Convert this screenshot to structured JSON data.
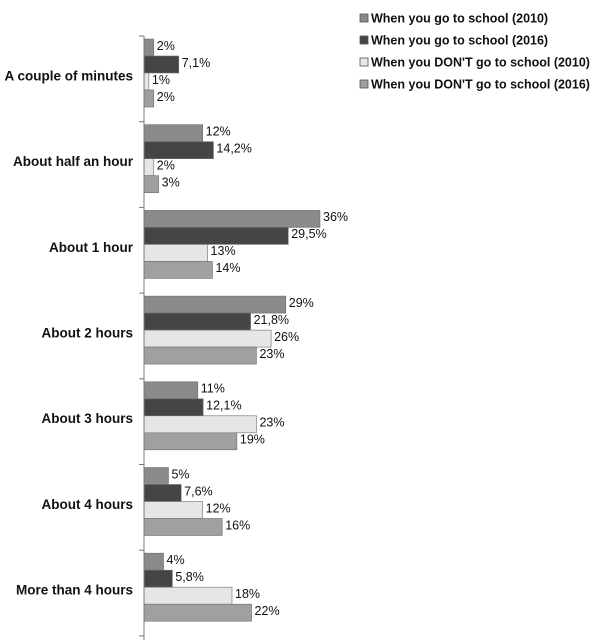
{
  "chart_data": {
    "type": "bar",
    "orientation": "horizontal",
    "categories": [
      "A couple of minutes",
      "About half an hour",
      "About 1 hour",
      "About 2 hours",
      "About 3 hours",
      "About 4 hours",
      "More than 4 hours"
    ],
    "series": [
      {
        "name": "When you go to school (2010)",
        "values": [
          2,
          12,
          36,
          29,
          11,
          5,
          4
        ],
        "labels": [
          "2%",
          "12%",
          "36%",
          "29%",
          "11%",
          "5%",
          "4%"
        ],
        "color": "#8a8a8a"
      },
      {
        "name": "When you go to school (2016)",
        "values": [
          7.1,
          14.2,
          29.5,
          21.8,
          12.1,
          7.6,
          5.8
        ],
        "labels": [
          "7,1%",
          "14,2%",
          "29,5%",
          "21,8%",
          "12,1%",
          "7,6%",
          "5,8%"
        ],
        "color": "#454545"
      },
      {
        "name": "When you DON'T go to school (2010)",
        "values": [
          1,
          2,
          13,
          26,
          23,
          12,
          18
        ],
        "labels": [
          "1%",
          "2%",
          "13%",
          "26%",
          "23%",
          "12%",
          "18%"
        ],
        "color": "#e6e6e6"
      },
      {
        "name": "When you DON'T go to school (2016)",
        "values": [
          2,
          3,
          14,
          23,
          19,
          16,
          22
        ],
        "labels": [
          "2%",
          "3%",
          "14%",
          "23%",
          "19%",
          "16%",
          "22%"
        ],
        "color": "#a0a0a0"
      }
    ],
    "legend_labels": [
      "When you go to school (2010)",
      "When you go to school (2016)",
      "When you DON'T go to school (2010)",
      "When you DON'T go to school (2016)"
    ],
    "xlim": [
      0,
      36
    ],
    "legend_position": "top-right",
    "grid": false
  }
}
